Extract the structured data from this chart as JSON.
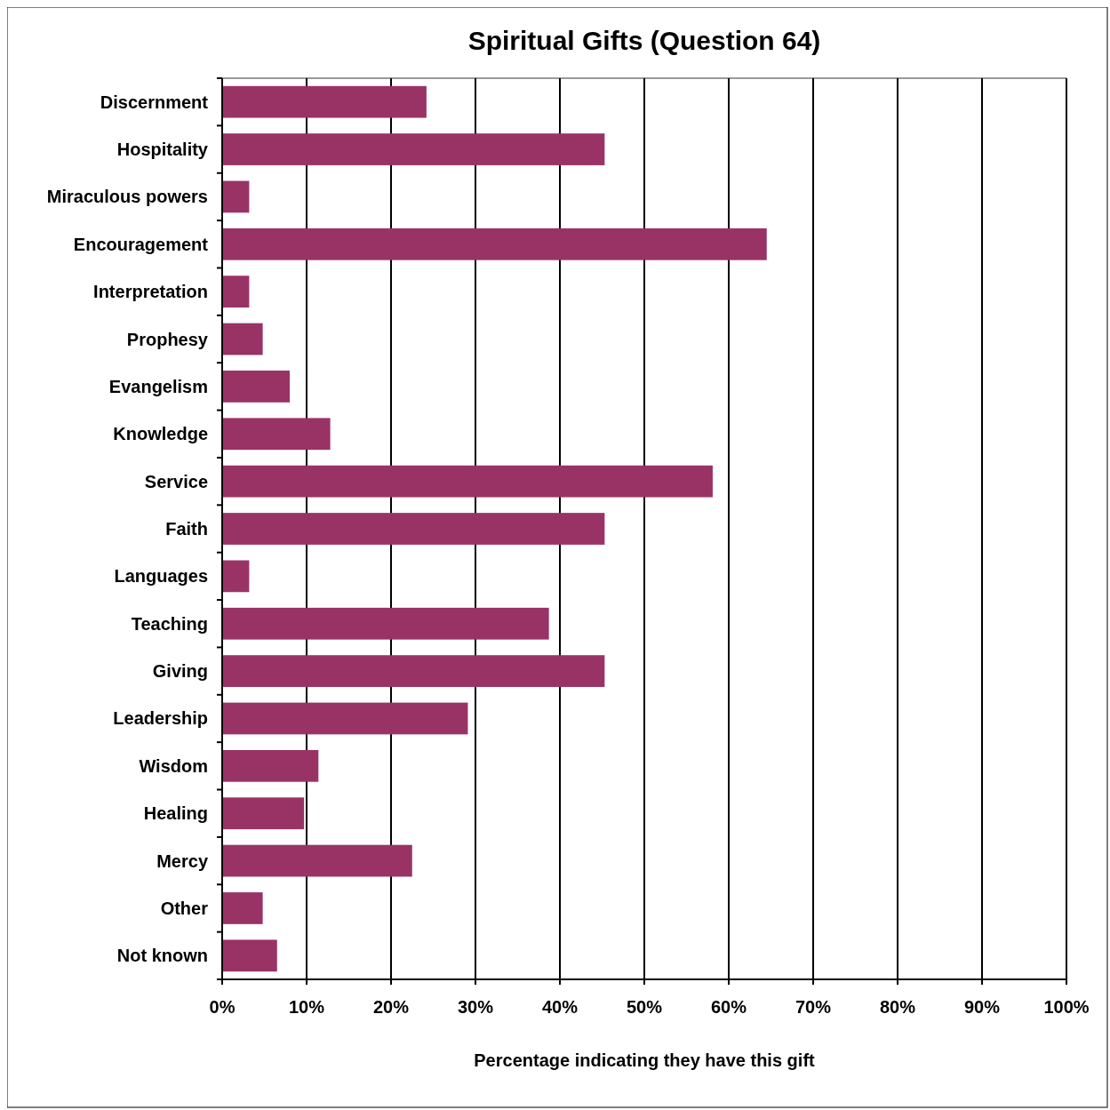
{
  "chart_data": {
    "type": "bar",
    "orientation": "horizontal",
    "title": "Spiritual Gifts (Question 64)",
    "xlabel": "Percentage indicating they have this gift",
    "categories": [
      "Discernment",
      "Hospitality",
      "Miraculous powers",
      "Encouragement",
      "Interpretation",
      "Prophesy",
      "Evangelism",
      "Knowledge",
      "Service",
      "Faith",
      "Languages",
      "Teaching",
      "Giving",
      "Leadership",
      "Wisdom",
      "Healing",
      "Mercy",
      "Other",
      "Not known"
    ],
    "values": [
      24.2,
      45.3,
      3.2,
      64.5,
      3.2,
      4.8,
      8.0,
      12.8,
      58.1,
      45.3,
      3.2,
      38.7,
      45.3,
      29.1,
      11.4,
      9.7,
      22.5,
      4.8,
      6.5
    ],
    "color": "#993366",
    "xlim": [
      0,
      100
    ],
    "xticks": [
      {
        "value": 0,
        "label": "0%"
      },
      {
        "value": 10,
        "label": "10%"
      },
      {
        "value": 20,
        "label": "20%"
      },
      {
        "value": 30,
        "label": "30%"
      },
      {
        "value": 40,
        "label": "40%"
      },
      {
        "value": 50,
        "label": "50%"
      },
      {
        "value": 60,
        "label": "60%"
      },
      {
        "value": 70,
        "label": "70%"
      },
      {
        "value": 80,
        "label": "80%"
      },
      {
        "value": 90,
        "label": "90%"
      },
      {
        "value": 100,
        "label": "100%"
      }
    ],
    "grid": "x"
  }
}
